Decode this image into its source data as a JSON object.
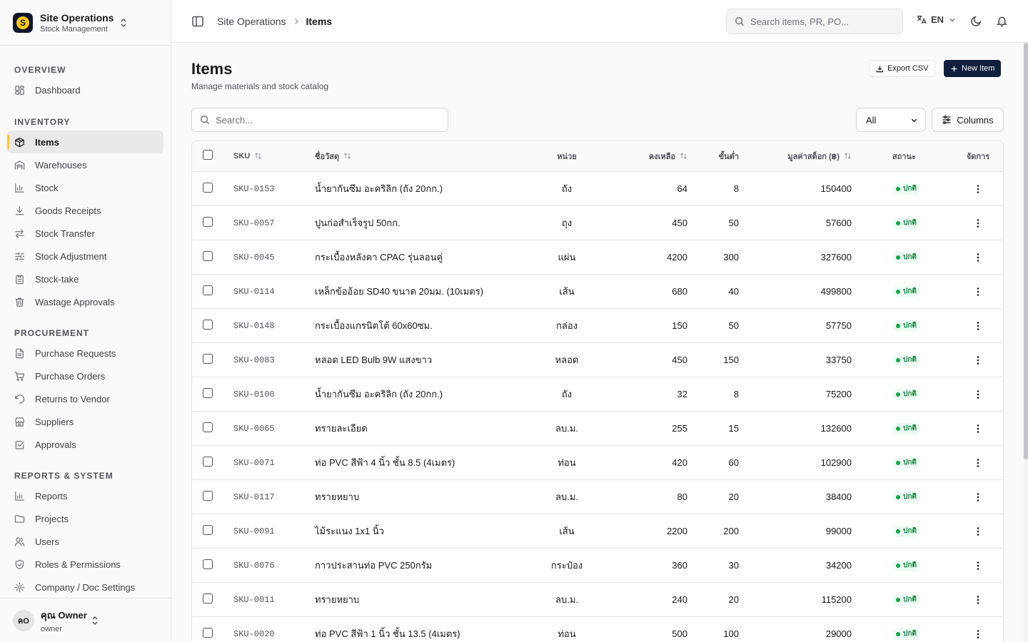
{
  "brand": {
    "logo_letter": "S",
    "title": "Site Operations",
    "subtitle": "Stock Management"
  },
  "sidebar": {
    "sections": [
      {
        "title": "OVERVIEW",
        "items": [
          {
            "label": "Dashboard",
            "icon": "dashboard-icon"
          }
        ]
      },
      {
        "title": "INVENTORY",
        "items": [
          {
            "label": "Items",
            "icon": "package-icon",
            "active": true
          },
          {
            "label": "Warehouses",
            "icon": "warehouse-icon"
          },
          {
            "label": "Stock",
            "icon": "bar-chart-icon"
          },
          {
            "label": "Goods Receipts",
            "icon": "download-icon"
          },
          {
            "label": "Stock Transfer",
            "icon": "transfer-icon"
          },
          {
            "label": "Stock Adjustment",
            "icon": "sliders-icon"
          },
          {
            "label": "Stock-take",
            "icon": "clipboard-icon"
          },
          {
            "label": "Wastage Approvals",
            "icon": "trash-icon"
          }
        ]
      },
      {
        "title": "PROCUREMENT",
        "items": [
          {
            "label": "Purchase Requests",
            "icon": "file-text-icon"
          },
          {
            "label": "Purchase Orders",
            "icon": "cart-icon"
          },
          {
            "label": "Returns to Vendor",
            "icon": "undo-icon"
          },
          {
            "label": "Suppliers",
            "icon": "store-icon"
          },
          {
            "label": "Approvals",
            "icon": "check-square-icon"
          }
        ]
      },
      {
        "title": "REPORTS & SYSTEM",
        "items": [
          {
            "label": "Reports",
            "icon": "bar-chart-icon"
          },
          {
            "label": "Projects",
            "icon": "folder-icon"
          },
          {
            "label": "Users",
            "icon": "users-icon"
          },
          {
            "label": "Roles & Permissions",
            "icon": "shield-icon"
          },
          {
            "label": "Company / Doc Settings",
            "icon": "gear-icon"
          }
        ]
      }
    ]
  },
  "user": {
    "initials": "คO",
    "name": "คุณ Owner",
    "role": "owner"
  },
  "header": {
    "breadcrumb": [
      "Site Operations",
      "Items"
    ],
    "search_placeholder": "Search items, PR, PO...",
    "language": "EN"
  },
  "page": {
    "title": "Items",
    "subtitle": "Manage materials and stock catalog",
    "export_label": "Export CSV",
    "new_label": "New Item",
    "search_placeholder": "Search...",
    "filter_value": "All",
    "columns_label": "Columns"
  },
  "table": {
    "headers": {
      "sku": "SKU",
      "name": "ชื่อวัสดุ",
      "unit": "หน่วย",
      "remaining": "คงเหลือ",
      "minimum": "ขั้นต่ำ",
      "value": "มูลค่าสต็อก (฿)",
      "status": "สถานะ",
      "actions": "จัดการ"
    },
    "rows": [
      {
        "sku": "SKU-0153",
        "name": "น้ำยากันซึม อะคริลิก (ถัง 20กก.)",
        "unit": "ถัง",
        "remaining": "64",
        "minimum": "8",
        "value": "150400",
        "status": "ปกติ"
      },
      {
        "sku": "SKU-0057",
        "name": "ปูนก่อสำเร็จรูป 50กก.",
        "unit": "ถุง",
        "remaining": "450",
        "minimum": "50",
        "value": "57600",
        "status": "ปกติ"
      },
      {
        "sku": "SKU-0045",
        "name": "กระเบื้องหลังคา CPAC รุ่นลอนคู่",
        "unit": "แผ่น",
        "remaining": "4200",
        "minimum": "300",
        "value": "327600",
        "status": "ปกติ"
      },
      {
        "sku": "SKU-0114",
        "name": "เหล็กข้ออ้อย SD40 ขนาด 20มม. (10เมตร)",
        "unit": "เส้น",
        "remaining": "680",
        "minimum": "40",
        "value": "499800",
        "status": "ปกติ"
      },
      {
        "sku": "SKU-0148",
        "name": "กระเบื้องแกรนิตโต้ 60x60ซม.",
        "unit": "กล่อง",
        "remaining": "150",
        "minimum": "50",
        "value": "57750",
        "status": "ปกติ"
      },
      {
        "sku": "SKU-0083",
        "name": "หลอด LED Bulb 9W แสงขาว",
        "unit": "หลอด",
        "remaining": "450",
        "minimum": "150",
        "value": "33750",
        "status": "ปกติ"
      },
      {
        "sku": "SKU-0100",
        "name": "น้ำยากันซึม อะคริลิก (ถัง 20กก.)",
        "unit": "ถัง",
        "remaining": "32",
        "minimum": "8",
        "value": "75200",
        "status": "ปกติ"
      },
      {
        "sku": "SKU-0065",
        "name": "ทรายละเอียด",
        "unit": "ลบ.ม.",
        "remaining": "255",
        "minimum": "15",
        "value": "132600",
        "status": "ปกติ"
      },
      {
        "sku": "SKU-0071",
        "name": "ท่อ PVC สีฟ้า 4 นิ้ว ชั้น 8.5 (4เมตร)",
        "unit": "ท่อน",
        "remaining": "420",
        "minimum": "60",
        "value": "102900",
        "status": "ปกติ"
      },
      {
        "sku": "SKU-0117",
        "name": "ทรายหยาบ",
        "unit": "ลบ.ม.",
        "remaining": "80",
        "minimum": "20",
        "value": "38400",
        "status": "ปกติ"
      },
      {
        "sku": "SKU-0091",
        "name": "ไม้ระแนง 1x1 นิ้ว",
        "unit": "เส้น",
        "remaining": "2200",
        "minimum": "200",
        "value": "99000",
        "status": "ปกติ"
      },
      {
        "sku": "SKU-0076",
        "name": "กาวประสานท่อ PVC 250กรัม",
        "unit": "กระป๋อง",
        "remaining": "360",
        "minimum": "30",
        "value": "34200",
        "status": "ปกติ"
      },
      {
        "sku": "SKU-0011",
        "name": "ทรายหยาบ",
        "unit": "ลบ.ม.",
        "remaining": "240",
        "minimum": "20",
        "value": "115200",
        "status": "ปกติ"
      },
      {
        "sku": "SKU-0020",
        "name": "ท่อ PVC สีฟ้า 1 นิ้ว ชั้น 13.5 (4เมตร)",
        "unit": "ท่อน",
        "remaining": "500",
        "minimum": "100",
        "value": "29000",
        "status": "ปกติ"
      }
    ]
  },
  "colors": {
    "accent": "#facc15",
    "primary": "#0f1f3d",
    "status_ok": "#16a34a"
  }
}
